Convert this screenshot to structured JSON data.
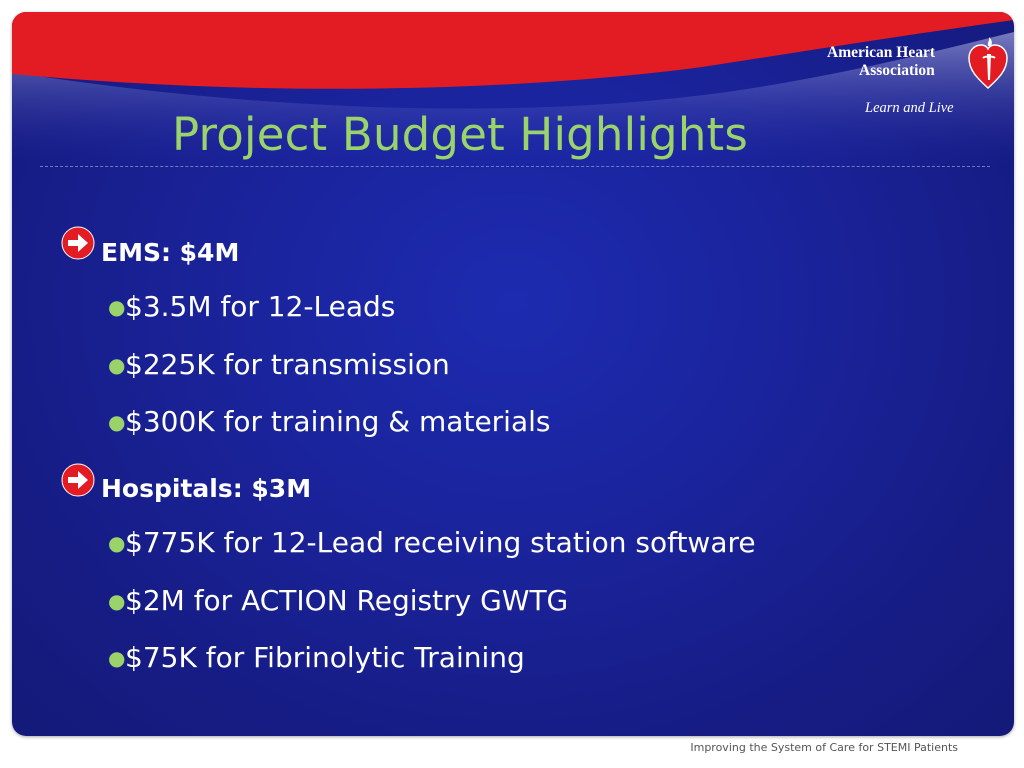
{
  "slide": {
    "title": "Project Budget Highlights",
    "logo": {
      "line1": "American Heart",
      "line2": "Association",
      "tagline": "Learn and Live"
    },
    "sections": [
      {
        "heading": "EMS: $4M",
        "items": [
          "$3.5M for 12-Leads",
          "$225K for transmission",
          "$300K for training & materials"
        ]
      },
      {
        "heading": "Hospitals: $3M",
        "items": [
          "$775K for 12-Lead receiving station software",
          "$2M for ACTION Registry GWTG",
          "$75K for Fibrinolytic Training"
        ]
      }
    ]
  },
  "footer": {
    "text": "Improving the System of Care for STEMI Patients"
  },
  "colors": {
    "background": "#1a2298",
    "title": "#9bd36b",
    "accent_red": "#e01b22",
    "bullet": "#9bd36b",
    "text": "#ffffff"
  },
  "icons": [
    "red-arrow-bullet-icon",
    "green-dot-bullet-icon",
    "heart-torch-logo-icon"
  ]
}
